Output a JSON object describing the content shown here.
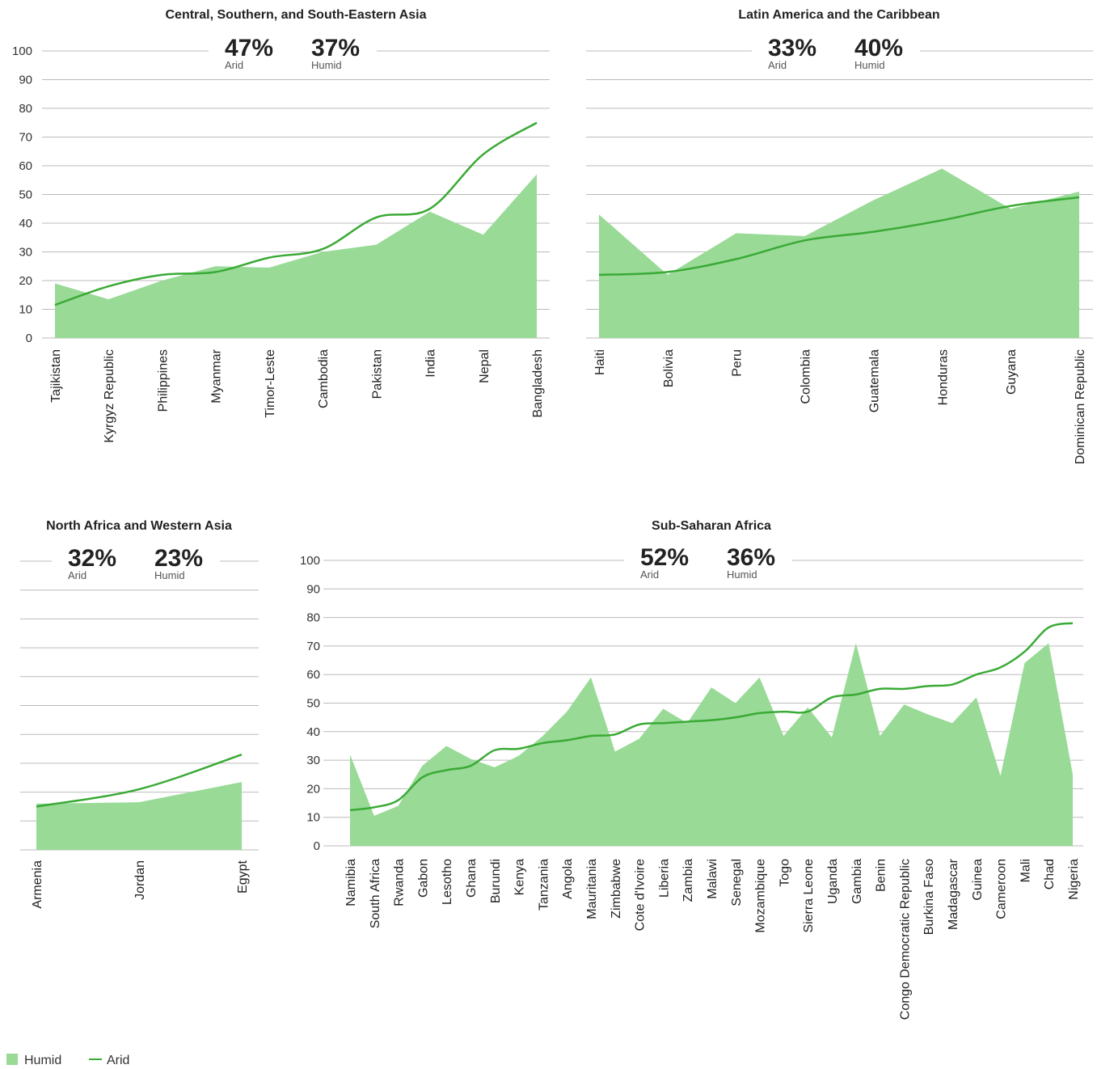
{
  "chart_data": [
    {
      "type": "area",
      "title": "Central, Southern, and South-Eastern Asia",
      "annotations": [
        {
          "text": "47%",
          "label": "Arid",
          "color": "#3aaa35"
        },
        {
          "text": "37%",
          "label": "Humid",
          "color": "#98da96"
        }
      ],
      "categories": [
        "Tajikistan",
        "Kyrgyz Republic",
        "Philippines",
        "Myanmar",
        "Timor-Leste",
        "Cambodia",
        "Pakistan",
        "India",
        "Nepal",
        "Bangladesh"
      ],
      "series": [
        {
          "name": "Humid",
          "style": "area",
          "color": "#98da96",
          "values": [
            19,
            13.5,
            20,
            25,
            24.5,
            30,
            32.5,
            44,
            36,
            57
          ]
        },
        {
          "name": "Arid",
          "style": "line",
          "color": "#3aaa35",
          "values": [
            11.5,
            18,
            22,
            23,
            28,
            31,
            42,
            45,
            64,
            75
          ]
        }
      ],
      "ylim": [
        0,
        100
      ],
      "yticks": [
        0,
        10,
        20,
        30,
        40,
        50,
        60,
        70,
        80,
        90,
        100
      ],
      "ytick_labels": true,
      "grid": true
    },
    {
      "type": "area",
      "title": "Latin America and the Caribbean",
      "annotations": [
        {
          "text": "33%",
          "label": "Arid",
          "color": "#3aaa35"
        },
        {
          "text": "40%",
          "label": "Humid",
          "color": "#98da96"
        }
      ],
      "categories": [
        "Haiti",
        "Bolivia",
        "Peru",
        "Colombia",
        "Guatemala",
        "Honduras",
        "Guyana",
        "Dominican Republic"
      ],
      "series": [
        {
          "name": "Humid",
          "style": "area",
          "color": "#98da96",
          "values": [
            43,
            22,
            36.5,
            35.5,
            48,
            59,
            45,
            51
          ]
        },
        {
          "name": "Arid",
          "style": "line",
          "color": "#3aaa35",
          "values": [
            22,
            23,
            27.5,
            34,
            37,
            41,
            46,
            49
          ]
        }
      ],
      "ylim": [
        0,
        100
      ],
      "yticks": [
        0,
        10,
        20,
        30,
        40,
        50,
        60,
        70,
        80,
        90,
        100
      ],
      "ytick_labels": false,
      "grid": true
    },
    {
      "type": "area",
      "title": "North Africa and Western Asia",
      "annotations": [
        {
          "text": "32%",
          "label": "Arid",
          "color": "#3aaa35"
        },
        {
          "text": "23%",
          "label": "Humid",
          "color": "#98da96"
        }
      ],
      "categories": [
        "Armenia",
        "Jordan",
        "Egypt"
      ],
      "series": [
        {
          "name": "Humid",
          "style": "area",
          "color": "#98da96",
          "values": [
            16,
            16.5,
            23.5
          ]
        },
        {
          "name": "Arid",
          "style": "line",
          "color": "#3aaa35",
          "values": [
            15,
            21,
            33
          ]
        }
      ],
      "ylim": [
        0,
        100
      ],
      "yticks": [
        0,
        10,
        20,
        30,
        40,
        50,
        60,
        70,
        80,
        90,
        100
      ],
      "ytick_labels": false,
      "grid": true
    },
    {
      "type": "area",
      "title": "Sub-Saharan Africa",
      "annotations": [
        {
          "text": "52%",
          "label": "Arid",
          "color": "#3aaa35"
        },
        {
          "text": "36%",
          "label": "Humid",
          "color": "#98da96"
        }
      ],
      "categories": [
        "Namibia",
        "South Africa",
        "Rwanda",
        "Gabon",
        "Lesotho",
        "Ghana",
        "Burundi",
        "Kenya",
        "Tanzania",
        "Angola",
        "Mauritania",
        "Zimbabwe",
        "Cote d'Ivoire",
        "Liberia",
        "Zambia",
        "Malawi",
        "Senegal",
        "Mozambique",
        "Togo",
        "Sierra Leone",
        "Uganda",
        "Gambia",
        "Benin",
        "Congo Democratic Republic",
        "Burkina Faso",
        "Madagascar",
        "Guinea",
        "Cameroon",
        "Mali",
        "Chad",
        "Nigeria"
      ],
      "series": [
        {
          "name": "Humid",
          "style": "area",
          "color": "#98da96",
          "values": [
            32,
            10.5,
            14,
            28,
            35,
            30.5,
            27.5,
            31.5,
            38.5,
            47,
            59,
            33,
            37.5,
            48,
            43,
            55.5,
            50,
            59,
            38.5,
            48.5,
            38,
            71,
            38.5,
            49.5,
            46,
            43,
            52,
            24.5,
            64,
            71,
            25
          ]
        },
        {
          "name": "Arid",
          "style": "line",
          "color": "#3aaa35",
          "values": [
            12.5,
            13.5,
            16,
            24,
            26.5,
            28,
            33.5,
            34,
            36,
            37,
            38.5,
            39,
            42.5,
            43,
            43.5,
            44,
            45,
            46.5,
            47,
            47,
            52,
            53,
            55,
            55,
            56,
            56.5,
            60,
            62.5,
            68,
            76.5,
            78
          ]
        }
      ],
      "ylim": [
        0,
        100
      ],
      "yticks": [
        0,
        10,
        20,
        30,
        40,
        50,
        60,
        70,
        80,
        90,
        100
      ],
      "ytick_labels": true,
      "grid": true
    }
  ]
}
